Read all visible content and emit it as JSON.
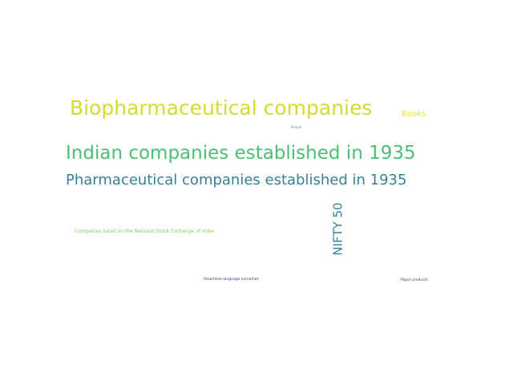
{
  "words": {
    "biopharmaceutical": {
      "text": "Biopharmaceutical companies",
      "color": "#d2dc32"
    },
    "books": {
      "text": "Books",
      "color": "#e8e04a"
    },
    "people": {
      "text": "People",
      "color": "#3aa88e"
    },
    "indian": {
      "text": "Indian companies established in 1935",
      "color": "#4cbf74"
    },
    "pharmaceutical": {
      "text": "Pharmaceutical companies established in 1935",
      "color": "#3a7f95"
    },
    "nifty": {
      "text": "NIFTY 50",
      "color": "#3a7f95"
    },
    "nse": {
      "text": "Companies listed on the National Stock Exchange of India",
      "color": "#7bd25a"
    },
    "assamese": {
      "text": "Assamese-language surnames",
      "color": "#4a2a6e"
    },
    "paper": {
      "text": "Paper products",
      "color": "#5a1f6e"
    }
  }
}
